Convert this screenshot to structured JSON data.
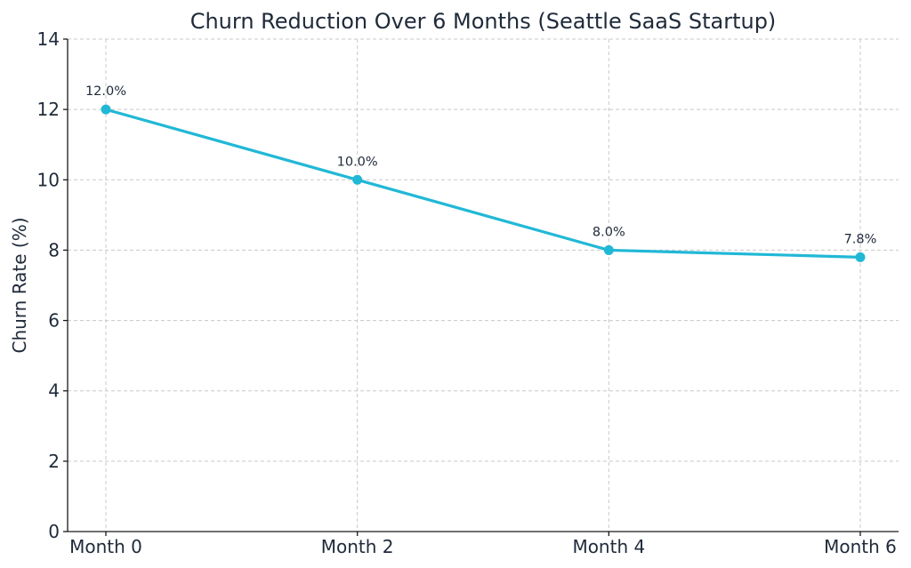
{
  "chart_data": {
    "type": "line",
    "title": "Churn Reduction Over 6 Months (Seattle SaaS Startup)",
    "xlabel": "",
    "ylabel": "Churn Rate (%)",
    "categories": [
      "Month 0",
      "Month 2",
      "Month 4",
      "Month 6"
    ],
    "series": [
      {
        "values": [
          12.0,
          10.0,
          8.0,
          7.8
        ],
        "data_labels": [
          "12.0%",
          "10.0%",
          "8.0%",
          "7.8%"
        ],
        "color": "#21b8d6"
      }
    ],
    "ylim": [
      0,
      14
    ],
    "yticks": [
      0,
      2,
      4,
      6,
      8,
      10,
      12,
      14
    ],
    "grid": true,
    "legend": "none"
  }
}
